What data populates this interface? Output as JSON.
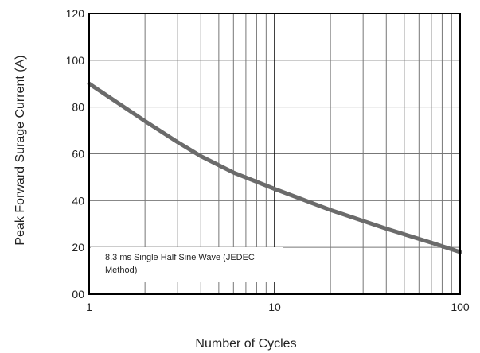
{
  "chart_data": {
    "type": "line",
    "title": "",
    "xlabel": "Number of Cycles",
    "ylabel": "Peak Forward Surage Current (A)",
    "x_scale": "log",
    "xlim": [
      1,
      100
    ],
    "ylim": [
      0,
      120
    ],
    "x_ticks": [
      {
        "value": 1,
        "label": "1"
      },
      {
        "value": 10,
        "label": "10"
      },
      {
        "value": 100,
        "label": "100"
      }
    ],
    "y_ticks": [
      {
        "value": 0,
        "label": "00"
      },
      {
        "value": 20,
        "label": "20"
      },
      {
        "value": 40,
        "label": "40"
      },
      {
        "value": 60,
        "label": "60"
      },
      {
        "value": 80,
        "label": "80"
      },
      {
        "value": 100,
        "label": "100"
      },
      {
        "value": 120,
        "label": "120"
      }
    ],
    "grid": true,
    "annotation": {
      "line1": "8.3 ms Single Half Sine Wave (JEDEC",
      "line2": "Method)"
    },
    "series": [
      {
        "color": "#6b6b6b",
        "points": [
          {
            "x": 1,
            "y": 90
          },
          {
            "x": 2,
            "y": 74
          },
          {
            "x": 3,
            "y": 65
          },
          {
            "x": 4,
            "y": 59
          },
          {
            "x": 6,
            "y": 52
          },
          {
            "x": 10,
            "y": 45
          },
          {
            "x": 20,
            "y": 36
          },
          {
            "x": 40,
            "y": 28
          },
          {
            "x": 70,
            "y": 22
          },
          {
            "x": 100,
            "y": 18
          }
        ]
      }
    ],
    "colors": {
      "frame": "#000000",
      "grid": "#777777",
      "major_grid": "#000000",
      "text": "#222222"
    }
  }
}
